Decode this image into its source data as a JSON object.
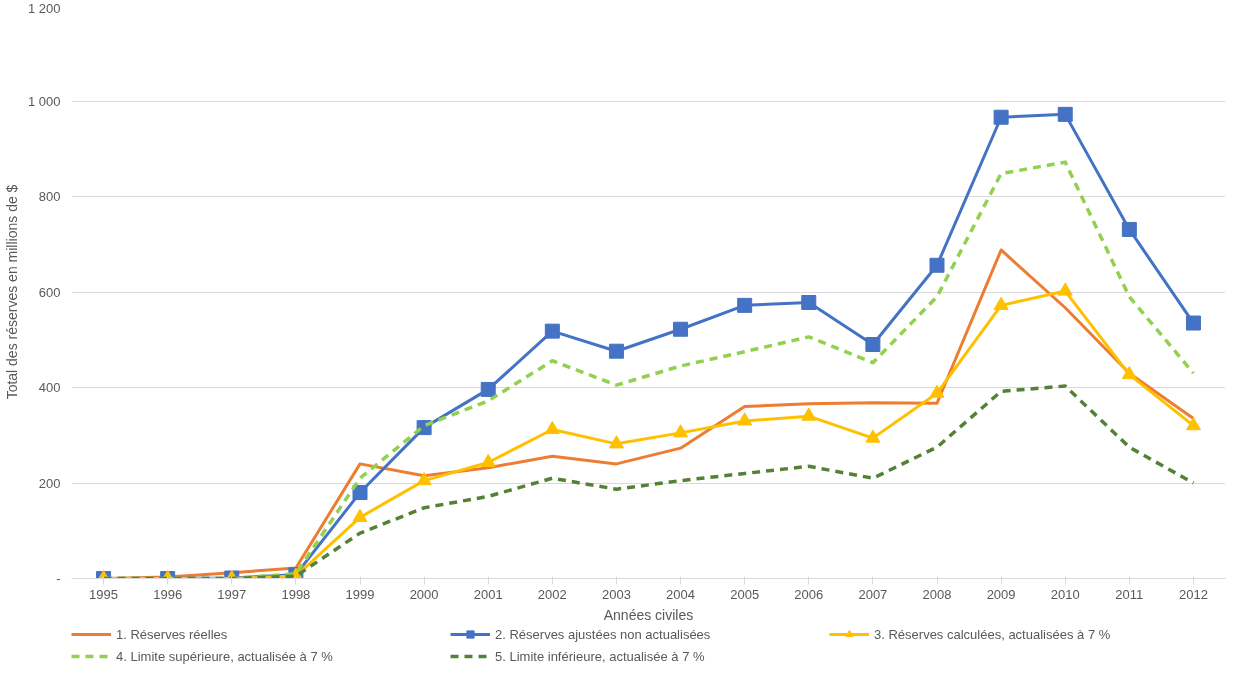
{
  "chart_data": {
    "type": "line",
    "xlabel": "Années civiles",
    "ylabel": "Total des réserves en millions de $",
    "categories": [
      "1995",
      "1996",
      "1997",
      "1998",
      "1999",
      "2000",
      "2001",
      "2002",
      "2003",
      "2004",
      "2005",
      "2006",
      "2007",
      "2008",
      "2009",
      "2010",
      "2011",
      "2012"
    ],
    "ylim": [
      0,
      1200
    ],
    "yticks": [
      {
        "value": 0,
        "label": "-"
      },
      200,
      400,
      600,
      800,
      {
        "value": 1000,
        "label": "1 000"
      },
      {
        "value": 1200,
        "label": "1 200"
      }
    ],
    "grid": "y",
    "legend": "bottom",
    "series": [
      {
        "name": "1. Réserves réelles",
        "color": "#ed7d31",
        "marker": "none",
        "line_style": "solid",
        "values": [
          0,
          3,
          12,
          22,
          240,
          215,
          232,
          256,
          240,
          273,
          360,
          366,
          368,
          367,
          688,
          567,
          430,
          335
        ]
      },
      {
        "name": "2. Réserves ajustées non actualisées",
        "color": "#4472c4",
        "marker": "square",
        "line_style": "solid",
        "values": [
          0,
          0,
          1,
          8,
          180,
          316,
          396,
          518,
          476,
          522,
          572,
          578,
          490,
          656,
          966,
          972,
          731,
          535
        ]
      },
      {
        "name": "3. Réserves calculées, actualisées à 7 %",
        "color": "#ffc000",
        "marker": "triangle",
        "line_style": "solid",
        "values": [
          0,
          0,
          0,
          5,
          128,
          205,
          243,
          312,
          282,
          305,
          330,
          340,
          294,
          388,
          572,
          602,
          427,
          320
        ]
      },
      {
        "name": "4. Limite supérieure, actualisée à 7 %",
        "color": "#92d050",
        "marker": "none",
        "line_style": "dashed",
        "values": [
          0,
          0,
          0,
          10,
          210,
          320,
          372,
          456,
          405,
          445,
          475,
          506,
          452,
          590,
          848,
          872,
          590,
          430
        ]
      },
      {
        "name": "5. Limite inférieure, actualisée à 7 %",
        "color": "#548235",
        "marker": "none",
        "line_style": "dashed",
        "values": [
          0,
          0,
          0,
          5,
          95,
          148,
          172,
          210,
          187,
          205,
          220,
          235,
          210,
          275,
          392,
          403,
          275,
          200
        ]
      }
    ]
  }
}
